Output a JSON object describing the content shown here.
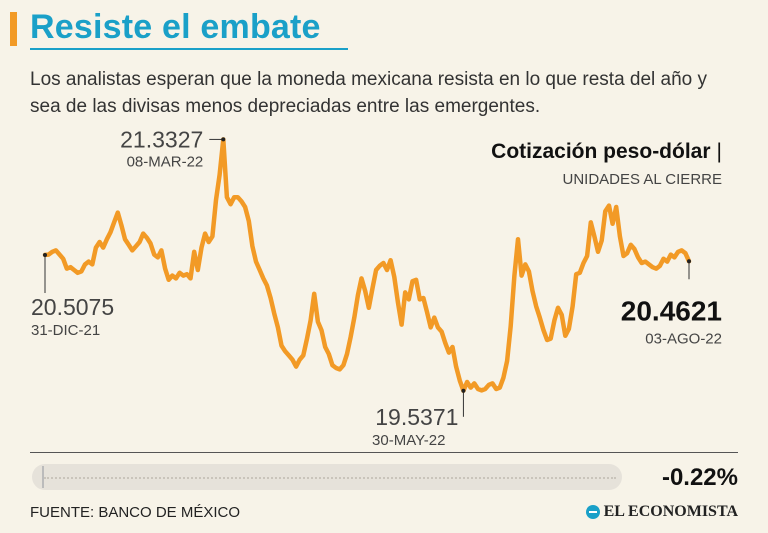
{
  "header": {
    "title": "Resiste el embate",
    "subtitle": "Los analistas esperan que la moneda mexicana resista en lo que resta del año y sea de las divisas menos depreciadas entre las emergentes."
  },
  "chart_header": {
    "title": "Cotización peso-dólar",
    "title_sep": "|",
    "subtitle": "UNIDADES AL CIERRE"
  },
  "chart_data": {
    "type": "line",
    "title": "Cotización peso-dólar",
    "ylabel": "UNIDADES AL CIERRE",
    "xrange": [
      "31-DIC-21",
      "03-AGO-22"
    ],
    "ylim": [
      19.4,
      21.4
    ],
    "series": [
      {
        "name": "Peso-dólar",
        "color": "#f29a26",
        "values": [
          20.5075,
          20.51,
          20.53,
          20.54,
          20.51,
          20.48,
          20.41,
          20.42,
          20.4,
          20.38,
          20.39,
          20.44,
          20.46,
          20.44,
          20.56,
          20.6,
          20.56,
          20.62,
          20.67,
          20.74,
          20.81,
          20.72,
          20.62,
          20.58,
          20.54,
          20.57,
          20.6,
          20.66,
          20.63,
          20.59,
          20.51,
          20.49,
          20.54,
          20.41,
          20.33,
          20.36,
          20.34,
          20.38,
          20.36,
          20.37,
          20.34,
          20.53,
          20.4,
          20.56,
          20.66,
          20.6,
          20.64,
          20.9,
          21.08,
          21.3327,
          20.92,
          20.87,
          20.92,
          20.92,
          20.89,
          20.85,
          20.75,
          20.57,
          20.46,
          20.4,
          20.34,
          20.29,
          20.2,
          20.09,
          19.99,
          19.86,
          19.82,
          19.79,
          19.76,
          19.71,
          19.76,
          19.79,
          19.91,
          20.04,
          20.23,
          20.03,
          19.97,
          19.85,
          19.8,
          19.72,
          19.7,
          19.69,
          19.72,
          19.8,
          19.92,
          20.06,
          20.22,
          20.34,
          20.25,
          20.13,
          20.27,
          20.4,
          20.43,
          20.45,
          20.4,
          20.47,
          20.35,
          20.17,
          20.01,
          20.24,
          20.19,
          20.32,
          20.33,
          20.19,
          20.2,
          20.1,
          19.99,
          20.06,
          19.99,
          19.96,
          19.88,
          19.81,
          19.85,
          19.71,
          19.61,
          19.5371,
          19.6,
          19.56,
          19.59,
          19.55,
          19.54,
          19.55,
          19.58,
          19.59,
          19.55,
          19.56,
          19.63,
          19.75,
          20.0,
          20.36,
          20.62,
          20.36,
          20.44,
          20.39,
          20.25,
          20.14,
          20.06,
          19.97,
          19.9,
          19.91,
          20.04,
          20.13,
          20.08,
          19.93,
          19.98,
          20.14,
          20.37,
          20.38,
          20.45,
          20.5,
          20.74,
          20.64,
          20.53,
          20.61,
          20.82,
          20.86,
          20.73,
          20.85,
          20.64,
          20.5,
          20.52,
          20.58,
          20.55,
          20.49,
          20.45,
          20.46,
          20.44,
          20.42,
          20.41,
          20.43,
          20.48,
          20.46,
          20.51,
          20.49,
          20.53,
          20.54,
          20.52,
          20.4621
        ]
      }
    ],
    "annotations": [
      {
        "value": "20.5075",
        "date": "31-DIC-21",
        "point": "first"
      },
      {
        "value": "21.3327",
        "date": "08-MAR-22",
        "point": "max"
      },
      {
        "value": "19.5371",
        "date": "30-MAY-22",
        "point": "min"
      },
      {
        "value": "20.4621",
        "date": "03-AGO-22",
        "point": "last"
      }
    ]
  },
  "summary": {
    "change": "-0.22%"
  },
  "footer": {
    "source": "FUENTE: BANCO DE MÉXICO",
    "brand": "EL ECONOMISTA"
  }
}
